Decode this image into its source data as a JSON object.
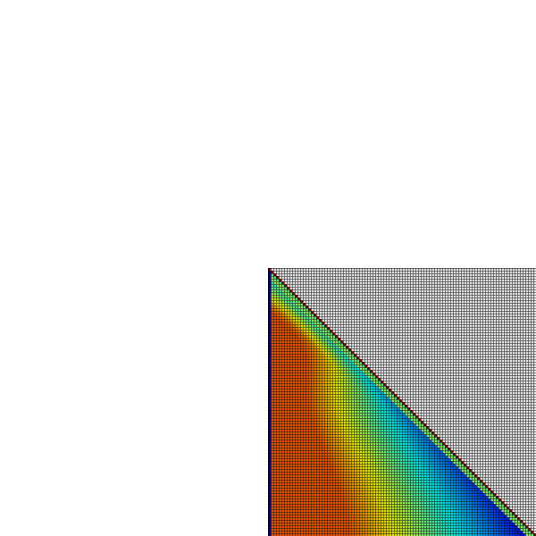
{
  "background_color": "#ffffff",
  "matrix_view": {
    "kind": "lower-triangular matrix heatmap",
    "rows": 100,
    "columns": 100,
    "filled_region": "lower-triangle",
    "empty_region": "upper-triangle",
    "cell_border_color": "#000000",
    "empty_cell_color": "#ffffff",
    "diagonal_color": "#8b0000",
    "first_column_color": "#00008b",
    "colormap": "jet"
  }
}
